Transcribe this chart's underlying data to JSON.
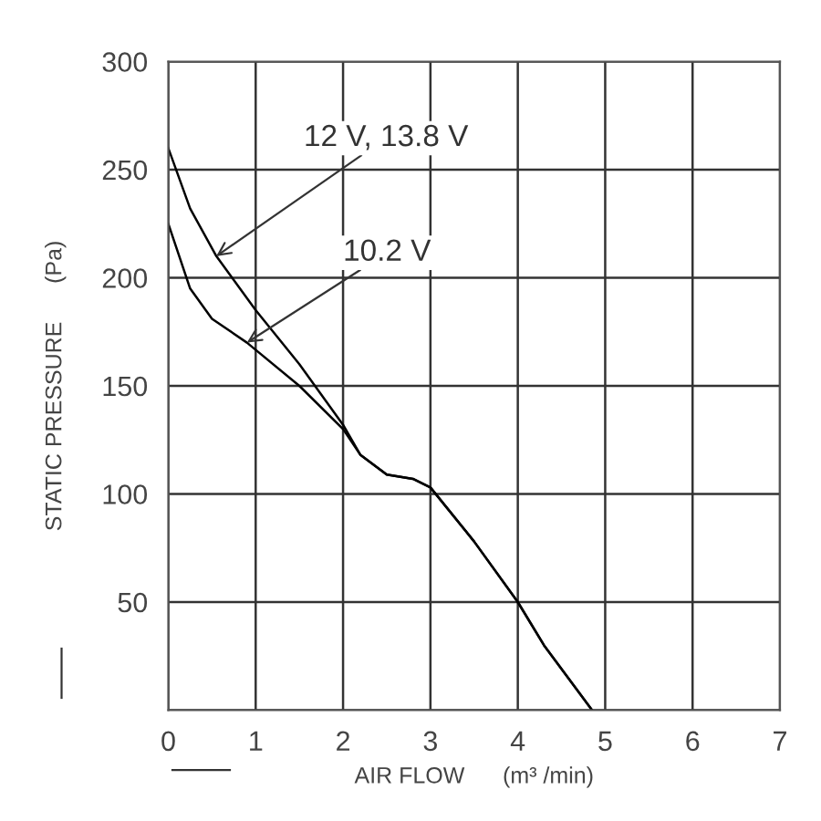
{
  "chart_data": {
    "type": "line",
    "xlabel": "AIR FLOW      (m³ /min)",
    "ylabel": "STATIC PRESSURE      (Pa)",
    "series": [
      {
        "color": "#000000",
        "x": [
          0,
          0.25,
          0.55,
          1,
          1.5,
          2,
          2.2,
          2.5,
          2.8,
          3,
          3.5,
          4,
          4.3,
          4.85
        ],
        "values": [
          260,
          232,
          210,
          185,
          160,
          132,
          118,
          109,
          107,
          103,
          78,
          50,
          30,
          0
        ]
      },
      {
        "color": "#000000",
        "x": [
          0,
          0.25,
          0.5,
          0.9,
          1.5,
          2,
          2.2,
          2.5,
          2.8,
          3,
          3.5,
          4,
          4.3,
          4.85
        ],
        "values": [
          225,
          195,
          181,
          170,
          150,
          130,
          118,
          109,
          107,
          103,
          78,
          50,
          30,
          0
        ]
      }
    ],
    "annotations": [
      {
        "text": "12 V, 13.8 V",
        "x": 0.55,
        "y": 210
      },
      {
        "text": "10.2 V",
        "x": 0.9,
        "y": 170
      }
    ],
    "xlim": [
      0,
      7
    ],
    "ylim": [
      0,
      300
    ],
    "xticks": [
      0,
      1,
      2,
      3,
      4,
      5,
      6,
      7
    ],
    "yticks": [
      {
        "value": 0,
        "label": null
      },
      50,
      100,
      150,
      200,
      250,
      300
    ],
    "grid": true,
    "marker": "none",
    "line_style": "solid"
  }
}
